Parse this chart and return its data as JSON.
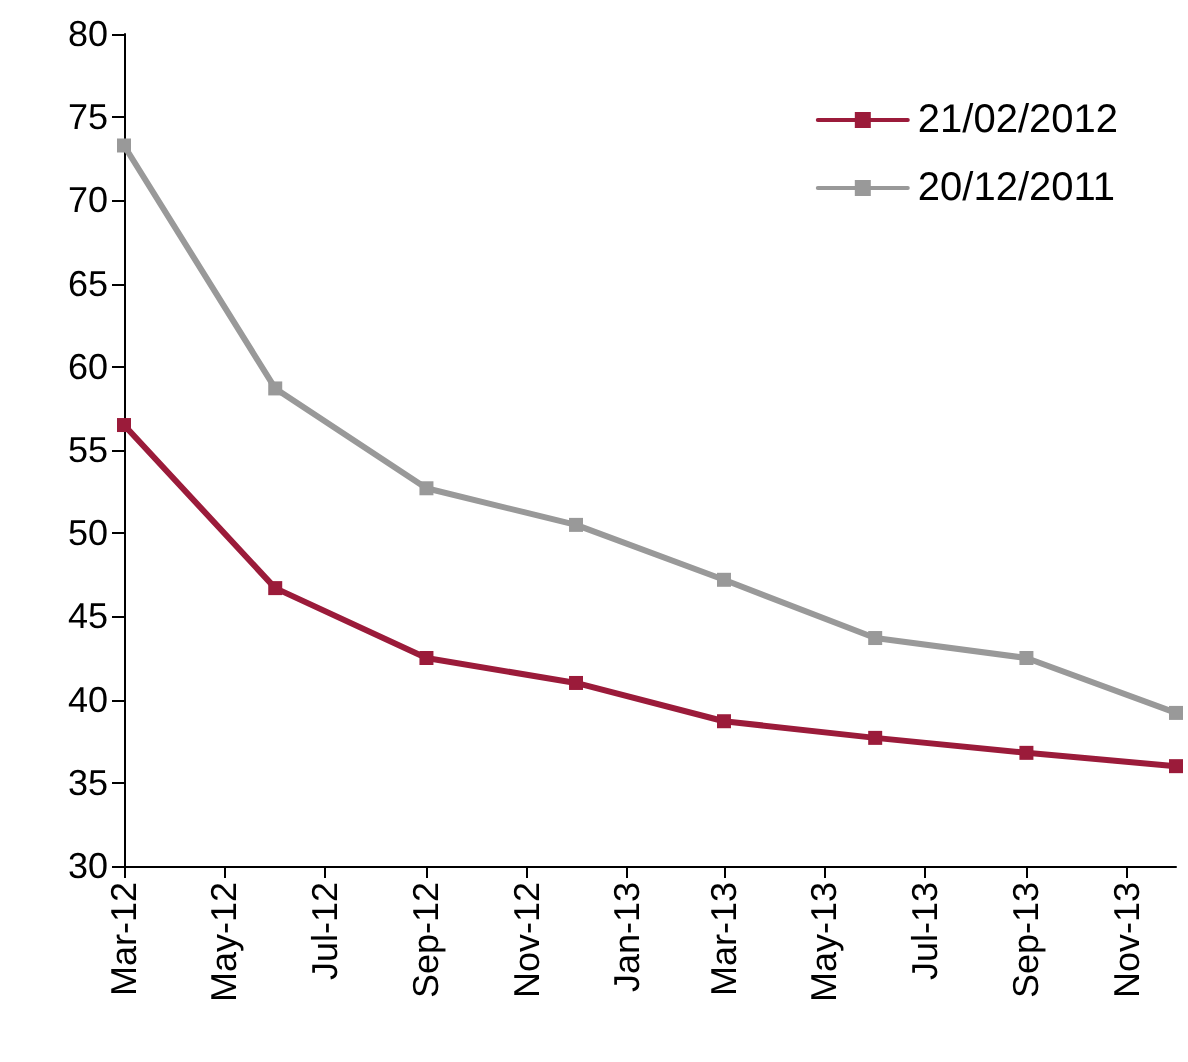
{
  "chart_data": {
    "type": "line",
    "x": [
      "2012-03",
      "2012-06",
      "2012-09",
      "2012-12",
      "2013-03",
      "2013-06",
      "2013-09",
      "2013-12"
    ],
    "series": [
      {
        "name": "21/02/2012",
        "color": "#9b1b3a",
        "values": [
          56.5,
          46.7,
          42.5,
          41,
          38.7,
          37.7,
          36.8,
          36
        ]
      },
      {
        "name": "20/12/2011",
        "color": "#999999",
        "values": [
          73.3,
          58.7,
          52.7,
          50.5,
          47.2,
          43.7,
          42.5,
          39.2
        ]
      }
    ],
    "xlim": [
      "2012-03",
      "2013-12"
    ],
    "xticks": [
      {
        "value": "2012-03",
        "label": "Mar-12"
      },
      {
        "value": "2012-05",
        "label": "May-12"
      },
      {
        "value": "2012-07",
        "label": "Jul-12"
      },
      {
        "value": "2012-09",
        "label": "Sep-12"
      },
      {
        "value": "2012-11",
        "label": "Nov-12"
      },
      {
        "value": "2013-01",
        "label": "Jan-13"
      },
      {
        "value": "2013-03",
        "label": "Mar-13"
      },
      {
        "value": "2013-05",
        "label": "May-13"
      },
      {
        "value": "2013-07",
        "label": "Jul-13"
      },
      {
        "value": "2013-09",
        "label": "Sep-13"
      },
      {
        "value": "2013-11",
        "label": "Nov-13"
      }
    ],
    "ylim": [
      30,
      80
    ],
    "yticks": [
      30,
      35,
      40,
      45,
      50,
      55,
      60,
      65,
      70,
      75,
      80
    ],
    "grid": false,
    "legend": "top right",
    "marker": "square",
    "line_style": "solid"
  }
}
